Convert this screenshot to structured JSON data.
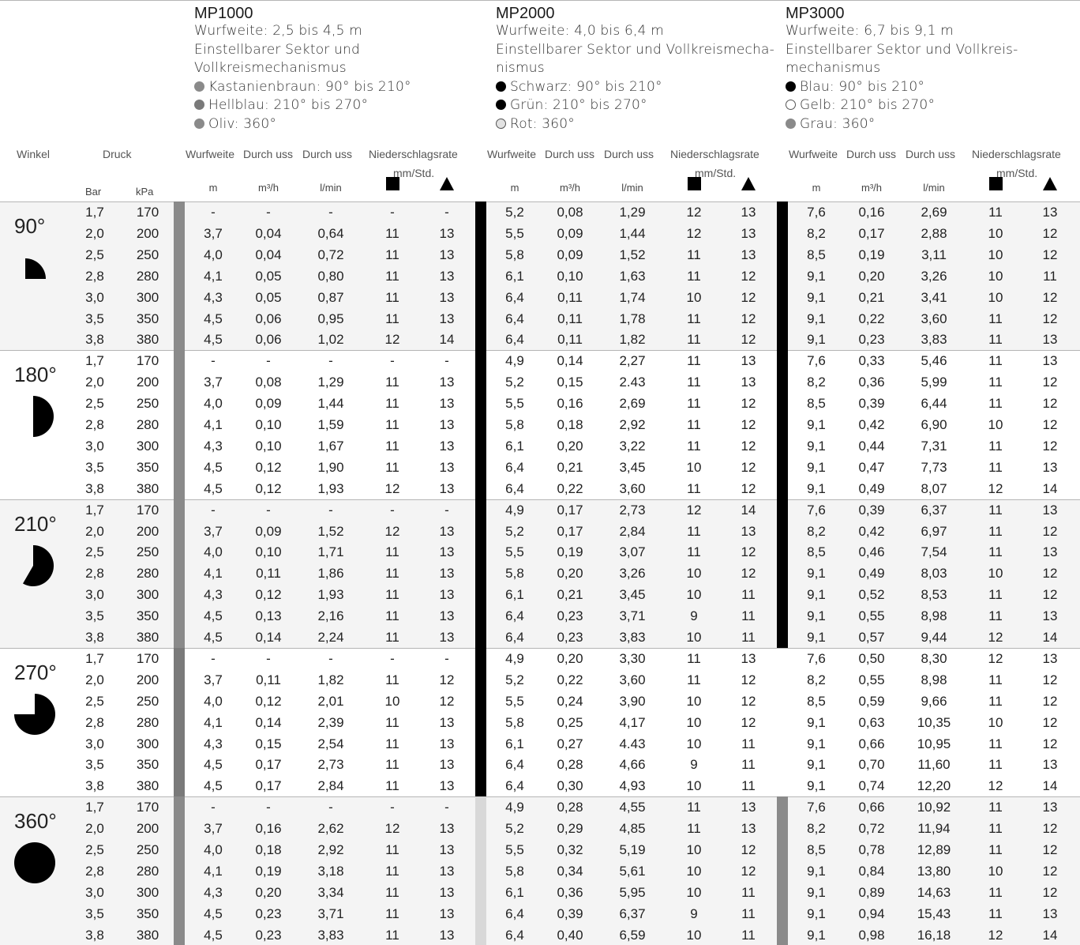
{
  "products": [
    {
      "name": "MP1000",
      "lines": [
        "Wurfweite: 2,5 bis 4,5 m",
        "Einstellbarer Sektor und",
        "Vollkreismechanismus"
      ],
      "nozzles": [
        {
          "label": "Kastanienbraun: 90° bis 210°",
          "color": "#8a8a8a",
          "outline": false
        },
        {
          "label": "Hellblau: 210° bis 270°",
          "color": "#7a7a7a",
          "outline": false
        },
        {
          "label": "Oliv: 360°",
          "color": "#8a8a8a",
          "outline": false
        }
      ]
    },
    {
      "name": "MP2000",
      "lines": [
        "Wurfweite: 4,0 bis 6,4 m",
        "Einstellbarer Sektor und Vollkreismecha-",
        "nismus"
      ],
      "nozzles": [
        {
          "label": "Schwarz: 90° bis 210°",
          "color": "#000000",
          "outline": false
        },
        {
          "label": "Grün: 210° bis 270°",
          "color": "#000000",
          "outline": false
        },
        {
          "label": "Rot: 360°",
          "color": "#e2e2e2",
          "outline": true
        }
      ]
    },
    {
      "name": "MP3000",
      "lines": [
        "Wurfweite: 6,7 bis 9,1 m",
        "Einstellbarer Sektor und Vollkreis-",
        "mechanismus"
      ],
      "nozzles": [
        {
          "label": "Blau: 90° bis 210°",
          "color": "#000000",
          "outline": false
        },
        {
          "label": "Gelb: 210° bis 270°",
          "color": "#ffffff",
          "outline": true
        },
        {
          "label": "Grau: 360°",
          "color": "#8a8a8a",
          "outline": false
        }
      ]
    }
  ],
  "headers": {
    "winkel": "Winkel",
    "druck": "Druck",
    "bar": "Bar",
    "kpa": "kPa",
    "wurfweite": "Wurfweite",
    "durchfluss": "Durch uss",
    "niederschlag": "Niederschlagsrate",
    "mmstd": "mm/Std.",
    "m": "m",
    "m3h": "m³/h",
    "lmin": "l/min"
  },
  "pressures": [
    [
      "1,7",
      "170"
    ],
    [
      "2,0",
      "200"
    ],
    [
      "2,5",
      "250"
    ],
    [
      "2,8",
      "280"
    ],
    [
      "3,0",
      "300"
    ],
    [
      "3,5",
      "350"
    ],
    [
      "3,8",
      "380"
    ]
  ],
  "groups": [
    {
      "angle": "90°",
      "shape": "quarter",
      "colors": [
        "#8a8a8a",
        "#000000",
        "#000000"
      ],
      "rows": [
        [
          [
            "-",
            "-",
            "-",
            "-",
            "-"
          ],
          [
            "5,2",
            "0,08",
            "1,29",
            "12",
            "13"
          ],
          [
            "7,6",
            "0,16",
            "2,69",
            "11",
            "13"
          ]
        ],
        [
          [
            "3,7",
            "0,04",
            "0,64",
            "11",
            "13"
          ],
          [
            "5,5",
            "0,09",
            "1,44",
            "12",
            "13"
          ],
          [
            "8,2",
            "0,17",
            "2,88",
            "10",
            "12"
          ]
        ],
        [
          [
            "4,0",
            "0,04",
            "0,72",
            "11",
            "13"
          ],
          [
            "5,8",
            "0,09",
            "1,52",
            "11",
            "13"
          ],
          [
            "8,5",
            "0,19",
            "3,11",
            "10",
            "12"
          ]
        ],
        [
          [
            "4,1",
            "0,05",
            "0,80",
            "11",
            "13"
          ],
          [
            "6,1",
            "0,10",
            "1,63",
            "11",
            "12"
          ],
          [
            "9,1",
            "0,20",
            "3,26",
            "10",
            "11"
          ]
        ],
        [
          [
            "4,3",
            "0,05",
            "0,87",
            "11",
            "13"
          ],
          [
            "6,4",
            "0,11",
            "1,74",
            "10",
            "12"
          ],
          [
            "9,1",
            "0,21",
            "3,41",
            "10",
            "12"
          ]
        ],
        [
          [
            "4,5",
            "0,06",
            "0,95",
            "11",
            "13"
          ],
          [
            "6,4",
            "0,11",
            "1,78",
            "11",
            "12"
          ],
          [
            "9,1",
            "0,22",
            "3,60",
            "11",
            "12"
          ]
        ],
        [
          [
            "4,5",
            "0,06",
            "1,02",
            "12",
            "14"
          ],
          [
            "6,4",
            "0,11",
            "1,82",
            "11",
            "12"
          ],
          [
            "9,1",
            "0,23",
            "3,83",
            "11",
            "13"
          ]
        ]
      ]
    },
    {
      "angle": "180°",
      "shape": "half",
      "colors": [
        "#8a8a8a",
        "#000000",
        "#000000"
      ],
      "rows": [
        [
          [
            "-",
            "-",
            "-",
            "-",
            "-"
          ],
          [
            "4,9",
            "0,14",
            "2,27",
            "11",
            "13"
          ],
          [
            "7,6",
            "0,33",
            "5,46",
            "11",
            "13"
          ]
        ],
        [
          [
            "3,7",
            "0,08",
            "1,29",
            "11",
            "13"
          ],
          [
            "5,2",
            "0,15",
            "2.43",
            "11",
            "13"
          ],
          [
            "8,2",
            "0,36",
            "5,99",
            "11",
            "12"
          ]
        ],
        [
          [
            "4,0",
            "0,09",
            "1,44",
            "11",
            "13"
          ],
          [
            "5,5",
            "0,16",
            "2,69",
            "11",
            "12"
          ],
          [
            "8,5",
            "0,39",
            "6,44",
            "11",
            "12"
          ]
        ],
        [
          [
            "4,1",
            "0,10",
            "1,59",
            "11",
            "13"
          ],
          [
            "5,8",
            "0,18",
            "2,92",
            "11",
            "12"
          ],
          [
            "9,1",
            "0,42",
            "6,90",
            "10",
            "12"
          ]
        ],
        [
          [
            "4,3",
            "0,10",
            "1,67",
            "11",
            "13"
          ],
          [
            "6,1",
            "0,20",
            "3,22",
            "11",
            "12"
          ],
          [
            "9,1",
            "0,44",
            "7,31",
            "11",
            "12"
          ]
        ],
        [
          [
            "4,5",
            "0,12",
            "1,90",
            "11",
            "13"
          ],
          [
            "6,4",
            "0,21",
            "3,45",
            "10",
            "12"
          ],
          [
            "9,1",
            "0,47",
            "7,73",
            "11",
            "13"
          ]
        ],
        [
          [
            "4,5",
            "0,12",
            "1,93",
            "12",
            "13"
          ],
          [
            "6,4",
            "0,22",
            "3,60",
            "11",
            "12"
          ],
          [
            "9,1",
            "0,49",
            "8,07",
            "12",
            "14"
          ]
        ]
      ]
    },
    {
      "angle": "210°",
      "shape": "d210",
      "colors": [
        "#8a8a8a",
        "#000000",
        "#000000"
      ],
      "rows": [
        [
          [
            "-",
            "-",
            "-",
            "-",
            "-"
          ],
          [
            "4,9",
            "0,17",
            "2,73",
            "12",
            "14"
          ],
          [
            "7,6",
            "0,39",
            "6,37",
            "11",
            "13"
          ]
        ],
        [
          [
            "3,7",
            "0,09",
            "1,52",
            "12",
            "13"
          ],
          [
            "5,2",
            "0,17",
            "2,84",
            "11",
            "13"
          ],
          [
            "8,2",
            "0,42",
            "6,97",
            "11",
            "12"
          ]
        ],
        [
          [
            "4,0",
            "0,10",
            "1,71",
            "11",
            "13"
          ],
          [
            "5,5",
            "0,19",
            "3,07",
            "11",
            "12"
          ],
          [
            "8,5",
            "0,46",
            "7,54",
            "11",
            "13"
          ]
        ],
        [
          [
            "4,1",
            "0,11",
            "1,86",
            "11",
            "13"
          ],
          [
            "5,8",
            "0,20",
            "3,26",
            "10",
            "12"
          ],
          [
            "9,1",
            "0,49",
            "8,03",
            "10",
            "12"
          ]
        ],
        [
          [
            "4,3",
            "0,12",
            "1,93",
            "11",
            "13"
          ],
          [
            "6,1",
            "0,21",
            "3,45",
            "10",
            "11"
          ],
          [
            "9,1",
            "0,52",
            "8,53",
            "11",
            "12"
          ]
        ],
        [
          [
            "4,5",
            "0,13",
            "2,16",
            "11",
            "13"
          ],
          [
            "6,4",
            "0,23",
            "3,71",
            "9",
            "11"
          ],
          [
            "9,1",
            "0,55",
            "8,98",
            "11",
            "13"
          ]
        ],
        [
          [
            "4,5",
            "0,14",
            "2,24",
            "11",
            "13"
          ],
          [
            "6,4",
            "0,23",
            "3,83",
            "10",
            "11"
          ],
          [
            "9,1",
            "0,57",
            "9,44",
            "12",
            "14"
          ]
        ]
      ]
    },
    {
      "angle": "270°",
      "shape": "d270",
      "colors": [
        "#7a7a7a",
        "#000000",
        "none"
      ],
      "rows": [
        [
          [
            "-",
            "-",
            "-",
            "-",
            "-"
          ],
          [
            "4,9",
            "0,20",
            "3,30",
            "11",
            "13"
          ],
          [
            "7,6",
            "0,50",
            "8,30",
            "12",
            "13"
          ]
        ],
        [
          [
            "3,7",
            "0,11",
            "1,82",
            "11",
            "12"
          ],
          [
            "5,2",
            "0,22",
            "3,60",
            "11",
            "12"
          ],
          [
            "8,2",
            "0,55",
            "8,98",
            "11",
            "12"
          ]
        ],
        [
          [
            "4,0",
            "0,12",
            "2,01",
            "10",
            "12"
          ],
          [
            "5,5",
            "0,24",
            "3,90",
            "10",
            "12"
          ],
          [
            "8,5",
            "0,59",
            "9,66",
            "11",
            "12"
          ]
        ],
        [
          [
            "4,1",
            "0,14",
            "2,39",
            "11",
            "13"
          ],
          [
            "5,8",
            "0,25",
            "4,17",
            "10",
            "12"
          ],
          [
            "9,1",
            "0,63",
            "10,35",
            "10",
            "12"
          ]
        ],
        [
          [
            "4,3",
            "0,15",
            "2,54",
            "11",
            "13"
          ],
          [
            "6,1",
            "0,27",
            "4.43",
            "10",
            "11"
          ],
          [
            "9,1",
            "0,66",
            "10,95",
            "11",
            "12"
          ]
        ],
        [
          [
            "4,5",
            "0,17",
            "2,73",
            "11",
            "13"
          ],
          [
            "6,4",
            "0,28",
            "4,66",
            "9",
            "11"
          ],
          [
            "9,1",
            "0,70",
            "11,60",
            "11",
            "13"
          ]
        ],
        [
          [
            "4,5",
            "0,17",
            "2,84",
            "11",
            "13"
          ],
          [
            "6,4",
            "0,30",
            "4,93",
            "10",
            "11"
          ],
          [
            "9,1",
            "0,74",
            "12,20",
            "12",
            "14"
          ]
        ]
      ]
    },
    {
      "angle": "360°",
      "shape": "full",
      "colors": [
        "#8a8a8a",
        "#d8d8d8",
        "#8a8a8a"
      ],
      "rows": [
        [
          [
            "-",
            "-",
            "-",
            "-",
            "-"
          ],
          [
            "4,9",
            "0,28",
            "4,55",
            "11",
            "13"
          ],
          [
            "7,6",
            "0,66",
            "10,92",
            "11",
            "13"
          ]
        ],
        [
          [
            "3,7",
            "0,16",
            "2,62",
            "12",
            "13"
          ],
          [
            "5,2",
            "0,29",
            "4,85",
            "11",
            "13"
          ],
          [
            "8,2",
            "0,72",
            "11,94",
            "11",
            "12"
          ]
        ],
        [
          [
            "4,0",
            "0,18",
            "2,92",
            "11",
            "13"
          ],
          [
            "5,5",
            "0,32",
            "5,19",
            "10",
            "12"
          ],
          [
            "8,5",
            "0,78",
            "12,89",
            "11",
            "12"
          ]
        ],
        [
          [
            "4,1",
            "0,19",
            "3,18",
            "11",
            "13"
          ],
          [
            "5,8",
            "0,34",
            "5,61",
            "10",
            "12"
          ],
          [
            "9,1",
            "0,84",
            "13,80",
            "10",
            "12"
          ]
        ],
        [
          [
            "4,3",
            "0,20",
            "3,34",
            "11",
            "13"
          ],
          [
            "6,1",
            "0,36",
            "5,95",
            "10",
            "11"
          ],
          [
            "9,1",
            "0,89",
            "14,63",
            "11",
            "12"
          ]
        ],
        [
          [
            "4,5",
            "0,23",
            "3,71",
            "11",
            "13"
          ],
          [
            "6,4",
            "0,39",
            "6,37",
            "9",
            "11"
          ],
          [
            "9,1",
            "0,94",
            "15,43",
            "11",
            "13"
          ]
        ],
        [
          [
            "4,5",
            "0,23",
            "3,83",
            "11",
            "13"
          ],
          [
            "6,4",
            "0,40",
            "6,59",
            "10",
            "11"
          ],
          [
            "9,1",
            "0,98",
            "16,18",
            "12",
            "14"
          ]
        ]
      ]
    }
  ]
}
